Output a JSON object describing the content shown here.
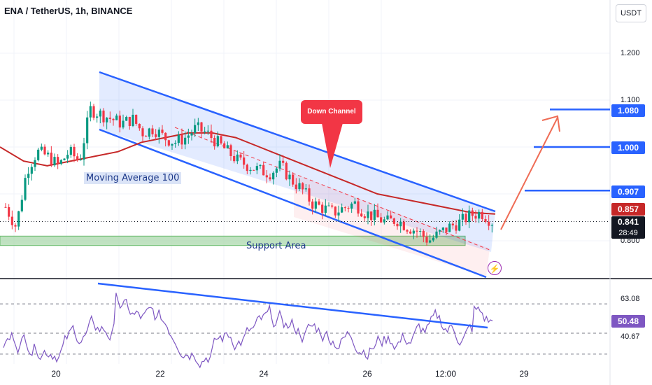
{
  "header": {
    "title": "ENA / TetherUS, 1h, BINANCE"
  },
  "currency_button": "USDT",
  "colors": {
    "up": "#089981",
    "down": "#f23645",
    "channel": "#2962ff",
    "ma": "#c62828",
    "support_fill": "#a5d6a7",
    "rsi": "#7e57c2",
    "target": "#2962ff"
  },
  "annotations": {
    "callout": "Down Channel",
    "moving_average": "Moving Average 100",
    "support": "Support Area"
  },
  "price_axis": {
    "ticks": [
      "1.200",
      "1.100",
      "0.800"
    ]
  },
  "price_tags": {
    "t1080": "1.080",
    "t1000": "1.000",
    "t907": "0.907",
    "t857": "0.857",
    "t841": "0.841",
    "countdown": "28:49"
  },
  "rsi_axis": {
    "upper": "63.08",
    "value": "50.48",
    "lower": "40.67"
  },
  "time_axis": {
    "labels": [
      "20",
      "22",
      "24",
      "26",
      "12:00",
      "29"
    ]
  },
  "icon": "lightning-icon",
  "chart_data": {
    "type": "line",
    "title": "ENA / TetherUS, 1h, BINANCE",
    "x_tick_labels": [
      "20",
      "22",
      "24",
      "26",
      "12:00",
      "29"
    ],
    "ylim": [
      0.76,
      1.28
    ],
    "close_series_approx": [
      0.872,
      0.83,
      0.95,
      0.99,
      0.98,
      0.96,
      0.99,
      0.97,
      1.08,
      1.07,
      1.06,
      1.05,
      1.06,
      1.03,
      1.04,
      1.02,
      1.01,
      1.02,
      1.04,
      1.03,
      1.01,
      0.99,
      0.97,
      0.96,
      0.95,
      0.945,
      0.96,
      0.93,
      0.91,
      0.88,
      0.87,
      0.86,
      0.87,
      0.88,
      0.86,
      0.85,
      0.84,
      0.845,
      0.83,
      0.82,
      0.8,
      0.815,
      0.83,
      0.84,
      0.855,
      0.86,
      0.841
    ],
    "moving_average_100_approx": [
      1.0,
      0.97,
      0.96,
      0.97,
      0.98,
      0.99,
      1.01,
      1.02,
      1.03,
      1.03,
      1.02,
      1.0,
      0.98,
      0.96,
      0.94,
      0.92,
      0.9,
      0.89,
      0.88,
      0.87,
      0.86,
      0.857
    ],
    "levels": [
      1.08,
      1.0,
      0.907,
      0.857,
      0.841
    ],
    "support_area": [
      0.79,
      0.81
    ],
    "rsi": {
      "levels": [
        63.08,
        40.67
      ],
      "current": 50.48
    }
  }
}
